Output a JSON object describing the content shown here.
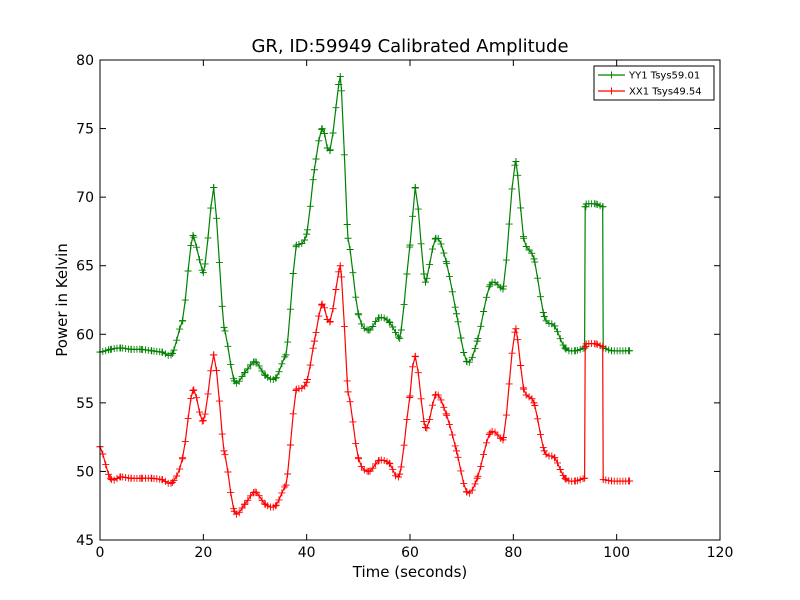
{
  "chart_data": {
    "type": "line",
    "title": "GR, ID:59949 Calibrated Amplitude",
    "xlabel": "Time (seconds)",
    "ylabel": "Power in Kelvin",
    "xlim": [
      0,
      120
    ],
    "ylim": [
      45,
      80
    ],
    "xticks": [
      "0",
      "20",
      "40",
      "60",
      "80",
      "100",
      "120"
    ],
    "yticks": [
      "45",
      "50",
      "55",
      "60",
      "65",
      "70",
      "75",
      "80"
    ],
    "grid": false,
    "legend_position": "top-right",
    "marker": "+",
    "series": [
      {
        "name": "YY1 Tsys59.01",
        "color": "#008000",
        "x": [
          0,
          2,
          4,
          6,
          8,
          10,
          12,
          14,
          16,
          18,
          20,
          22,
          24,
          26,
          28,
          30,
          32,
          34,
          36,
          38,
          40,
          41.5,
          43,
          44.5,
          46.5,
          48,
          50,
          52,
          54,
          56,
          58,
          60,
          61,
          63,
          65,
          67,
          69,
          71,
          73,
          75.5,
          78,
          80.5,
          82,
          84,
          86,
          88,
          90,
          92,
          93.8,
          93.9,
          94.1,
          96,
          97.3,
          97.4,
          99,
          102.5
        ],
        "y": [
          58.7,
          58.9,
          59.0,
          58.9,
          58.9,
          58.8,
          58.7,
          58.6,
          61.0,
          67.2,
          64.5,
          70.7,
          60.5,
          56.6,
          57.2,
          58.0,
          57.0,
          56.8,
          58.5,
          66.5,
          67.3,
          72.0,
          75.0,
          73.4,
          78.8,
          67.0,
          61.5,
          60.3,
          61.2,
          60.9,
          59.7,
          66.5,
          70.7,
          63.8,
          67.0,
          65.3,
          61.5,
          58.0,
          59.5,
          63.6,
          63.3,
          72.6,
          67.0,
          65.5,
          61.3,
          60.6,
          59.0,
          58.8,
          59.0,
          69.3,
          69.5,
          69.5,
          69.3,
          59.0,
          58.8,
          58.8
        ]
      },
      {
        "name": "XX1 Tsys49.54",
        "color": "#ff0000",
        "x": [
          0,
          2,
          4,
          6,
          8,
          10,
          12,
          14,
          16,
          18,
          20,
          22,
          24,
          26,
          28,
          30,
          32,
          34,
          36,
          38,
          40,
          41.5,
          43,
          44.5,
          46.5,
          48,
          50,
          52,
          54,
          56,
          58,
          60,
          61,
          63,
          65,
          67,
          69,
          71,
          73,
          75.5,
          78,
          80.5,
          82,
          84,
          86,
          88,
          90,
          92,
          93.8,
          93.9,
          94.1,
          96,
          97.3,
          97.4,
          99,
          102.5
        ],
        "y": [
          51.8,
          49.5,
          49.6,
          49.5,
          49.5,
          49.5,
          49.4,
          49.2,
          51.0,
          55.9,
          53.7,
          58.5,
          51.5,
          47.1,
          47.6,
          48.5,
          47.6,
          47.5,
          49.0,
          56.0,
          56.5,
          59.5,
          62.2,
          60.9,
          65.0,
          55.8,
          51.0,
          50.0,
          50.8,
          50.6,
          49.8,
          55.5,
          58.4,
          53.2,
          55.6,
          54.2,
          51.5,
          48.5,
          49.5,
          52.8,
          52.3,
          60.4,
          56.0,
          55.0,
          51.5,
          51.0,
          49.5,
          49.3,
          49.5,
          59.1,
          59.3,
          59.3,
          59.1,
          49.4,
          49.3,
          49.3
        ]
      }
    ]
  }
}
